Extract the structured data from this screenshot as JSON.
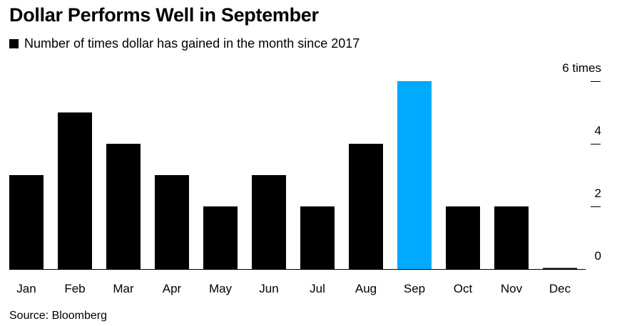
{
  "colors": {
    "bar_default": "#000000",
    "bar_highlight": "#00aaff",
    "text": "#000000"
  },
  "chart_data": {
    "type": "bar",
    "title": "Dollar Performs Well in September",
    "legend": [
      "Number of times dollar has gained in the month since 2017"
    ],
    "categories": [
      "Jan",
      "Feb",
      "Mar",
      "Apr",
      "May",
      "Jun",
      "Jul",
      "Aug",
      "Sep",
      "Oct",
      "Nov",
      "Dec"
    ],
    "series": [
      {
        "name": "Number of times dollar has gained in the month since 2017",
        "values": [
          3,
          5,
          4,
          3,
          2,
          3,
          2,
          4,
          6,
          2,
          2,
          0
        ]
      }
    ],
    "highlight_category": "Sep",
    "ylim": [
      0,
      6
    ],
    "yticks": [
      {
        "value": 0,
        "label": "0"
      },
      {
        "value": 2,
        "label": "2"
      },
      {
        "value": 4,
        "label": "4"
      },
      {
        "value": 6,
        "label": "6 times"
      }
    ],
    "y_axis_position": "right",
    "grid": false,
    "legend_position": "top-left",
    "source": "Source: Bloomberg"
  }
}
